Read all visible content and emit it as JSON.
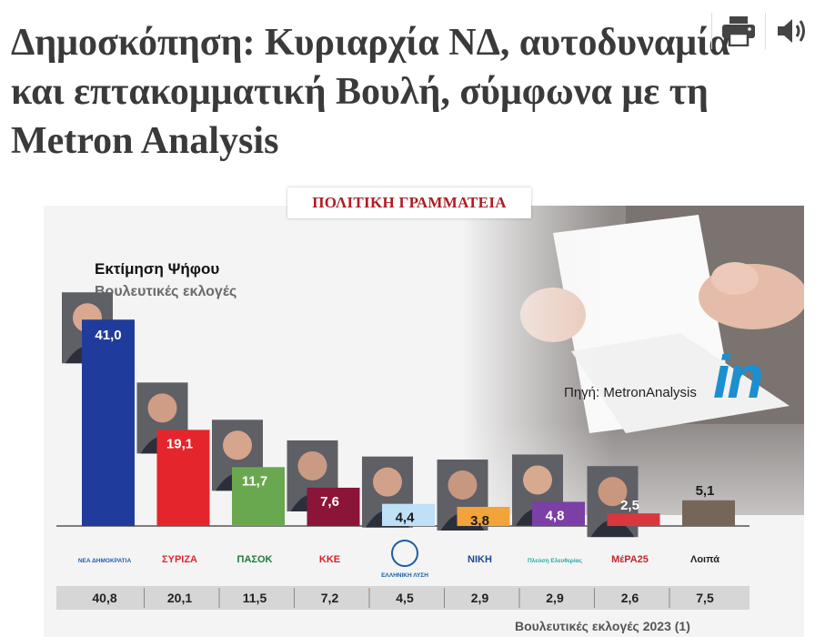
{
  "article": {
    "headline": "Δημοσκόπηση: Κυριαρχία ΝΔ, αυτοδυναμία και επτακομματική Βουλή, σύμφωνα με τη Metron Analysis",
    "category": "ΠΟΛΙΤΙΚΗ ΓΡΑΜΜΑΤΕΙΑ"
  },
  "toolbar": {
    "print_icon": "printer-icon",
    "audio_icon": "speaker-icon"
  },
  "infographic": {
    "source": "Πηγή: MetronAnalysis",
    "brand": "in",
    "footer": "Βουλευτικές εκλογές 2023 (1)"
  },
  "chart_data": {
    "type": "bar",
    "title": "Εκτίμηση Ψήφου",
    "subtitle": "Βουλευτικές εκλογές",
    "ylabel": "%",
    "ylim": [
      0,
      45
    ],
    "categories": [
      "ΝΕΑ ΔΗΜΟΚΡΑΤΙΑ",
      "ΣΥΡΙΖΑ",
      "ΠΑΣΟΚ",
      "ΚΚΕ",
      "ΕΛΛΗΝΙΚΗ ΛΥΣΗ",
      "ΝΙΚΗ",
      "Πλεύση Ελευθερίας",
      "ΜέΡΑ25",
      "Λοιπά"
    ],
    "logo_labels": [
      "ΝΕΑ ΔΗΜΟΚΡΑΤΙΑ",
      "ΣΥΡΙΖΑ",
      "ΠΑΣΟΚ",
      "ΚΚΕ",
      "ΕΛΛΗΝΙΚΗ ΛΥΣΗ",
      "ΝΙΚΗ",
      "Πλεύση Ελευθερίας",
      "ΜέΡΑ25",
      "Λοιπά"
    ],
    "values": [
      41.0,
      19.1,
      11.7,
      7.6,
      4.4,
      3.8,
      4.8,
      2.5,
      5.1
    ],
    "value_labels": [
      "41,0",
      "19,1",
      "11,7",
      "7,6",
      "4,4",
      "3,8",
      "4,8",
      "2,5",
      "5,1"
    ],
    "colors": [
      "#1f3c9c",
      "#e4262c",
      "#6aa84f",
      "#8a1538",
      "#bfe0f7",
      "#f2a33a",
      "#7b3fa6",
      "#d9363e",
      "#756659"
    ],
    "label_colors": [
      "#ffffff",
      "#ffffff",
      "#ffffff",
      "#ffffff",
      "#1a1a1a",
      "#1a1a1a",
      "#ffffff",
      "#ffffff",
      "#1a1a1a"
    ],
    "previous_election": {
      "label": "Βουλευτικές εκλογές 2023 (1)",
      "values": [
        40.8,
        20.1,
        11.5,
        7.2,
        4.5,
        2.9,
        2.9,
        2.6,
        7.5
      ],
      "value_labels": [
        "40,8",
        "20,1",
        "11,5",
        "7,2",
        "4,5",
        "2,9",
        "2,9",
        "2,6",
        "7,5"
      ]
    }
  }
}
